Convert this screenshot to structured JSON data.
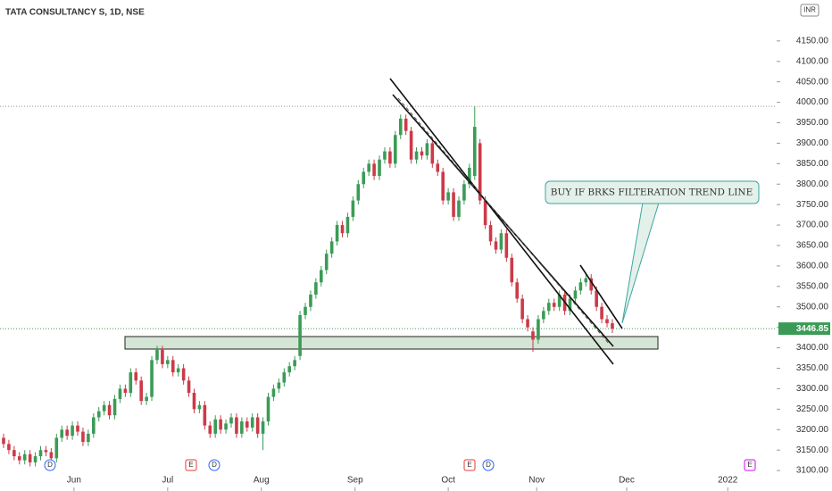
{
  "chart_data": {
    "type": "candlestick",
    "title": "TATA CONSULTANCY S, 1D, NSE",
    "currency": "INR",
    "annotation": "BUY IF BRKS FILTERATION TREND LINE",
    "events": [
      "D",
      "E",
      "D",
      "E",
      "D",
      "E"
    ],
    "up_color": "#3b9b56",
    "down_color": "#cc3a48",
    "ylim": [
      3050,
      4250
    ],
    "yticks": [
      {
        "value": 3100,
        "label": "3100.00"
      },
      {
        "value": 3150,
        "label": "3150.00"
      },
      {
        "value": 3200,
        "label": "3200.00"
      },
      {
        "value": 3250,
        "label": "3250.00"
      },
      {
        "value": 3300,
        "label": "3300.00"
      },
      {
        "value": 3350,
        "label": "3350.00"
      },
      {
        "value": 3400,
        "label": "3400.00"
      },
      {
        "value": 3450,
        "label": "3450.00"
      },
      {
        "value": 3500,
        "label": "3500.00"
      },
      {
        "value": 3550,
        "label": "3550.00"
      },
      {
        "value": 3600,
        "label": "3600.00"
      },
      {
        "value": 3650,
        "label": "3650.00"
      },
      {
        "value": 3700,
        "label": "3700.00"
      },
      {
        "value": 3750,
        "label": "3750.00"
      },
      {
        "value": 3800,
        "label": "3800.00"
      },
      {
        "value": 3850,
        "label": "3850.00"
      },
      {
        "value": 3900,
        "label": "3900.00"
      },
      {
        "value": 3950,
        "label": "3950.00"
      },
      {
        "value": 4000,
        "label": "4000.00"
      },
      {
        "value": 4050,
        "label": "4050.00"
      },
      {
        "value": 4100,
        "label": "4100.00"
      },
      {
        "value": 4150,
        "label": "4150.00"
      }
    ],
    "xticks": [
      {
        "value": 13.3,
        "label": "Jun"
      },
      {
        "value": 31,
        "label": "Jul"
      },
      {
        "value": 48.7,
        "label": "Aug"
      },
      {
        "value": 66.4,
        "label": "Sep"
      },
      {
        "value": 84,
        "label": "Oct"
      },
      {
        "value": 100.7,
        "label": "Nov"
      },
      {
        "value": 117.7,
        "label": "Dec"
      },
      {
        "value": 136.8,
        "label": "2022"
      }
    ],
    "open": [
      3180,
      3165,
      3150,
      3135,
      3125,
      3140,
      3120,
      3135,
      3150,
      3145,
      3130,
      3180,
      3200,
      3185,
      3210,
      3195,
      3170,
      3190,
      3230,
      3245,
      3260,
      3235,
      3275,
      3300,
      3290,
      3340,
      3320,
      3270,
      3280,
      3370,
      3395,
      3360,
      3370,
      3340,
      3350,
      3320,
      3290,
      3250,
      3260,
      3210,
      3190,
      3225,
      3200,
      3215,
      3230,
      3190,
      3220,
      3205,
      3230,
      3190,
      3220,
      3280,
      3300,
      3315,
      3340,
      3355,
      3380,
      3480,
      3500,
      3530,
      3560,
      3590,
      3630,
      3660,
      3700,
      3680,
      3720,
      3760,
      3800,
      3830,
      3850,
      3820,
      3860,
      3880,
      3850,
      3920,
      3960,
      3930,
      3860,
      3880,
      3870,
      3900,
      3850,
      3830,
      3760,
      3780,
      3720,
      3760,
      3800,
      3820,
      3900,
      3760,
      3700,
      3660,
      3640,
      3680,
      3620,
      3560,
      3520,
      3470,
      3440,
      3420,
      3470,
      3490,
      3510,
      3500,
      3530,
      3490,
      3520,
      3540,
      3560,
      3570,
      3540,
      3500,
      3470,
      3460
    ],
    "high": [
      3190,
      3175,
      3160,
      3145,
      3150,
      3150,
      3145,
      3160,
      3160,
      3155,
      3190,
      3210,
      3210,
      3220,
      3220,
      3205,
      3200,
      3240,
      3255,
      3270,
      3270,
      3285,
      3310,
      3310,
      3350,
      3350,
      3330,
      3290,
      3380,
      3405,
      3405,
      3380,
      3380,
      3360,
      3360,
      3330,
      3300,
      3270,
      3270,
      3220,
      3235,
      3235,
      3225,
      3240,
      3240,
      3230,
      3230,
      3240,
      3240,
      3230,
      3290,
      3310,
      3325,
      3350,
      3365,
      3380,
      3490,
      3510,
      3540,
      3570,
      3600,
      3640,
      3670,
      3710,
      3710,
      3730,
      3770,
      3810,
      3840,
      3860,
      3860,
      3870,
      3890,
      3890,
      3930,
      3970,
      3970,
      3940,
      3890,
      3890,
      3910,
      3910,
      3860,
      3840,
      3790,
      3790,
      3770,
      3810,
      3850,
      3990,
      3910,
      3770,
      3710,
      3670,
      3690,
      3690,
      3630,
      3570,
      3530,
      3480,
      3450,
      3480,
      3500,
      3520,
      3520,
      3540,
      3540,
      3530,
      3550,
      3570,
      3580,
      3580,
      3550,
      3510,
      3480,
      3470
    ],
    "low": [
      3155,
      3140,
      3125,
      3115,
      3115,
      3110,
      3110,
      3125,
      3135,
      3120,
      3120,
      3170,
      3175,
      3175,
      3185,
      3160,
      3160,
      3180,
      3220,
      3235,
      3225,
      3225,
      3265,
      3280,
      3280,
      3310,
      3260,
      3260,
      3270,
      3360,
      3350,
      3350,
      3330,
      3330,
      3310,
      3280,
      3240,
      3240,
      3200,
      3180,
      3180,
      3190,
      3190,
      3205,
      3180,
      3180,
      3195,
      3195,
      3180,
      3150,
      3210,
      3270,
      3290,
      3305,
      3330,
      3345,
      3370,
      3470,
      3490,
      3520,
      3550,
      3580,
      3620,
      3650,
      3670,
      3670,
      3710,
      3750,
      3790,
      3820,
      3810,
      3810,
      3850,
      3840,
      3840,
      3910,
      3920,
      3850,
      3850,
      3860,
      3860,
      3840,
      3820,
      3750,
      3750,
      3710,
      3710,
      3750,
      3790,
      3810,
      3750,
      3690,
      3650,
      3630,
      3630,
      3610,
      3550,
      3510,
      3460,
      3440,
      3390,
      3410,
      3460,
      3480,
      3490,
      3490,
      3480,
      3480,
      3510,
      3530,
      3550,
      3530,
      3490,
      3460,
      3450,
      3436
    ],
    "close": [
      3165,
      3150,
      3135,
      3125,
      3140,
      3120,
      3135,
      3150,
      3145,
      3130,
      3180,
      3200,
      3185,
      3210,
      3195,
      3170,
      3190,
      3230,
      3245,
      3260,
      3235,
      3275,
      3300,
      3290,
      3340,
      3320,
      3270,
      3280,
      3370,
      3395,
      3360,
      3370,
      3340,
      3350,
      3320,
      3290,
      3250,
      3260,
      3210,
      3190,
      3225,
      3200,
      3215,
      3230,
      3190,
      3220,
      3205,
      3230,
      3190,
      3220,
      3280,
      3300,
      3315,
      3340,
      3355,
      3370,
      3480,
      3500,
      3530,
      3560,
      3590,
      3630,
      3660,
      3700,
      3680,
      3720,
      3760,
      3800,
      3830,
      3850,
      3820,
      3860,
      3880,
      3850,
      3920,
      3960,
      3930,
      3860,
      3880,
      3870,
      3900,
      3850,
      3830,
      3760,
      3780,
      3720,
      3760,
      3800,
      3840,
      3940,
      3760,
      3700,
      3660,
      3640,
      3680,
      3620,
      3560,
      3520,
      3470,
      3450,
      3420,
      3470,
      3490,
      3510,
      3500,
      3530,
      3490,
      3520,
      3540,
      3560,
      3570,
      3540,
      3500,
      3470,
      3460,
      3446.85
    ]
  }
}
